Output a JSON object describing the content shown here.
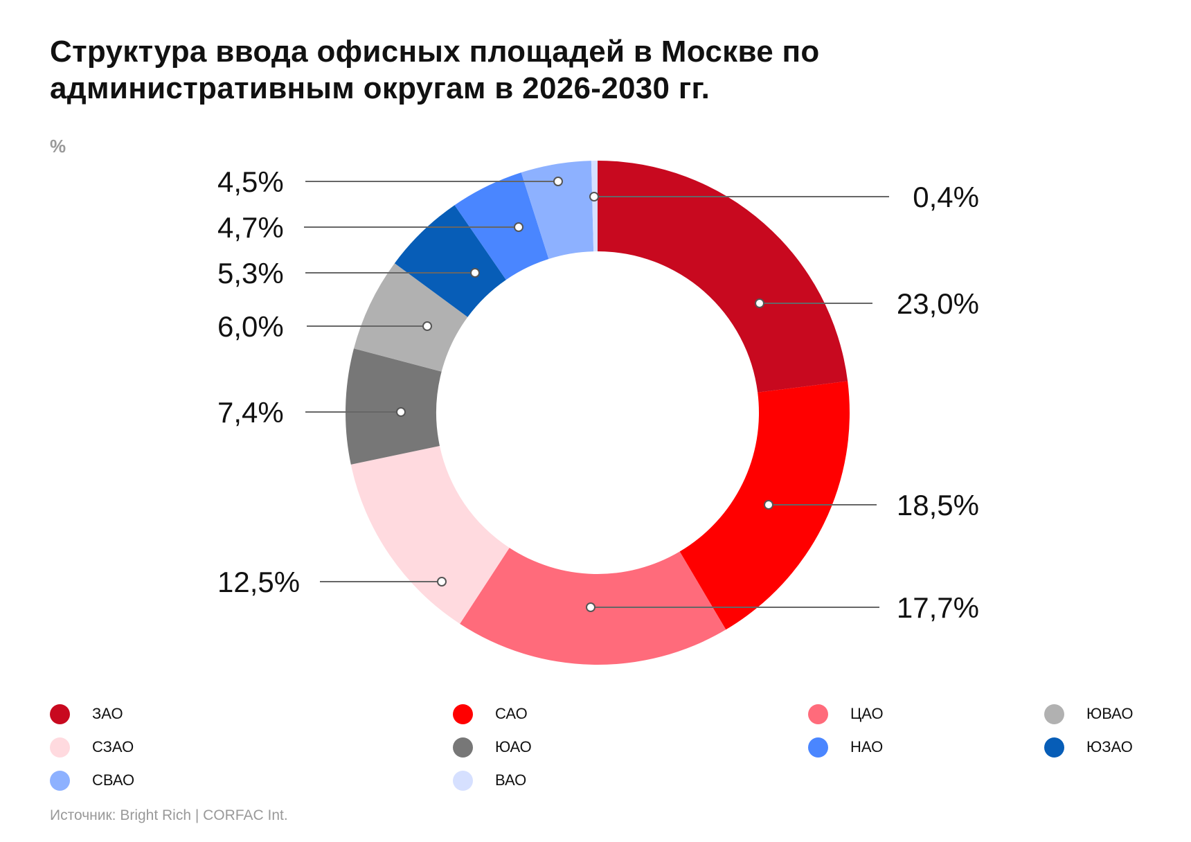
{
  "chart_data": {
    "type": "pie",
    "variant": "donut",
    "title": "Структура ввода офисных площадей в Москве по административным округам в 2026-2030 гг.",
    "unit": "%",
    "legend_position": "bottom",
    "slices": [
      {
        "name": "ЗАО",
        "value": 23.0,
        "label": "23,0%",
        "color": "#C8091F"
      },
      {
        "name": "САО",
        "value": 18.5,
        "label": "18,5%",
        "color": "#FF0000"
      },
      {
        "name": "ЦАО",
        "value": 17.7,
        "label": "17,7%",
        "color": "#FF6B7B"
      },
      {
        "name": "СЗАО",
        "value": 12.5,
        "label": "12,5%",
        "color": "#FFDADF"
      },
      {
        "name": "ЮАО",
        "value": 7.4,
        "label": "7,4%",
        "color": "#777777"
      },
      {
        "name": "ЮВАО",
        "value": 6.0,
        "label": "6,0%",
        "color": "#B1B1B1"
      },
      {
        "name": "ЮЗАО",
        "value": 5.3,
        "label": "5,3%",
        "color": "#075DB7"
      },
      {
        "name": "НАО",
        "value": 4.7,
        "label": "4,7%",
        "color": "#4A86FF"
      },
      {
        "name": "СВАО",
        "value": 4.5,
        "label": "4,5%",
        "color": "#8DB1FF"
      },
      {
        "name": "ВАО",
        "value": 0.4,
        "label": "0,4%",
        "color": "#D6E0FF"
      }
    ],
    "legend_order": [
      "ЗАО",
      "САО",
      "ЦАО",
      "ЮВАО",
      "СЗАО",
      "ЮАО",
      "НАО",
      "ЮЗАО",
      "СВАО",
      "ВАО"
    ]
  },
  "source": "Источник: Bright Rich | CORFAC Int."
}
